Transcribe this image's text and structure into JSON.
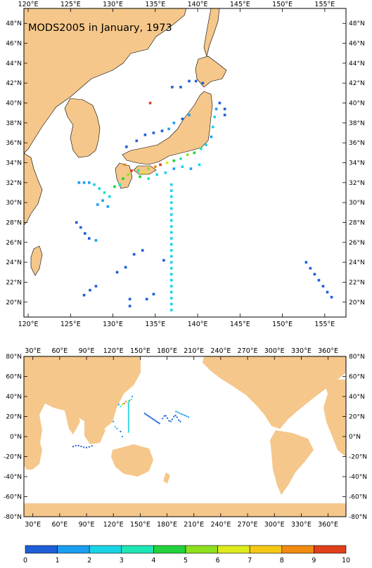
{
  "title": "MODS2005 in January, 1973",
  "top_map": {
    "x_ticks": [
      "120°E",
      "125°E",
      "130°E",
      "135°E",
      "140°E",
      "145°E",
      "150°E",
      "155°E"
    ],
    "y_ticks": [
      "20°N",
      "22°N",
      "24°N",
      "26°N",
      "28°N",
      "30°N",
      "32°N",
      "34°N",
      "36°N",
      "38°N",
      "40°N",
      "42°N",
      "44°N",
      "46°N",
      "48°N"
    ],
    "lon_range": [
      119.5,
      157.5
    ],
    "lat_range": [
      18.5,
      49.5
    ]
  },
  "bottom_map": {
    "x_ticks": [
      "30°E",
      "60°E",
      "90°E",
      "120°E",
      "150°E",
      "180°E",
      "210°E",
      "240°E",
      "270°E",
      "300°E",
      "330°E",
      "360°E"
    ],
    "y_ticks": [
      "80°N",
      "60°N",
      "40°N",
      "20°N",
      "0°N",
      "-20°N",
      "-40°N",
      "-60°N",
      "-80°N"
    ],
    "lon_range": [
      20,
      380
    ],
    "lat_range": [
      -80,
      80
    ]
  },
  "colorbar": {
    "labels": [
      "0",
      "1",
      "2",
      "3",
      "4",
      "5",
      "6",
      "7",
      "8",
      "9",
      "10"
    ],
    "colors": [
      "#1e5fd8",
      "#1a9ff0",
      "#19d4e6",
      "#1ee6b4",
      "#22d23c",
      "#8fe01e",
      "#ddea1c",
      "#f5c814",
      "#f08a10",
      "#e0401a"
    ]
  },
  "colors": {
    "land": "#f5c78a",
    "ocean": "#ffffff",
    "frame": "#000000"
  }
}
